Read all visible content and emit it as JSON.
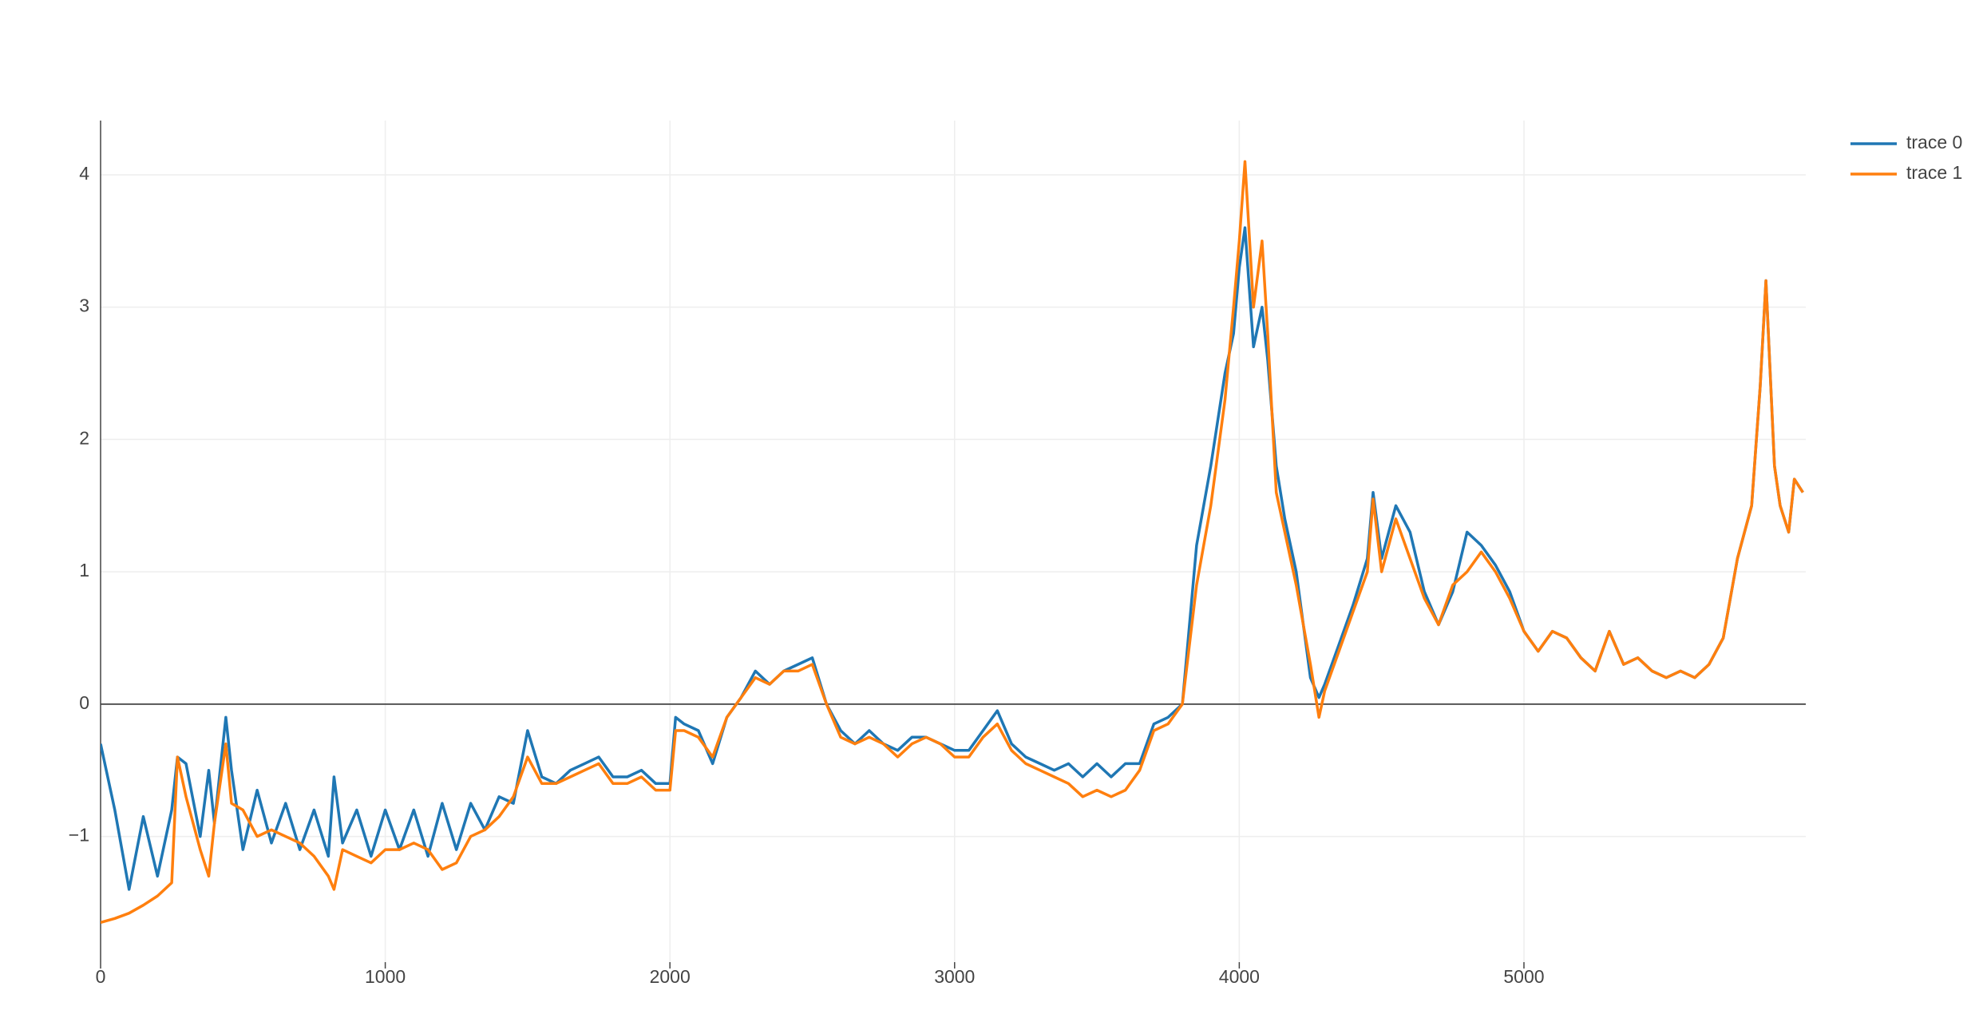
{
  "chart_data": {
    "type": "line",
    "x": [
      0,
      50,
      100,
      150,
      200,
      250,
      270,
      300,
      350,
      380,
      400,
      440,
      460,
      500,
      550,
      600,
      650,
      700,
      750,
      800,
      820,
      850,
      900,
      950,
      1000,
      1050,
      1100,
      1150,
      1200,
      1250,
      1300,
      1350,
      1400,
      1450,
      1500,
      1550,
      1600,
      1650,
      1700,
      1750,
      1800,
      1850,
      1900,
      1950,
      2000,
      2020,
      2050,
      2100,
      2150,
      2200,
      2250,
      2300,
      2350,
      2400,
      2450,
      2500,
      2550,
      2600,
      2650,
      2700,
      2750,
      2800,
      2850,
      2900,
      2950,
      3000,
      3050,
      3100,
      3150,
      3200,
      3250,
      3300,
      3350,
      3400,
      3450,
      3500,
      3550,
      3600,
      3650,
      3700,
      3750,
      3800,
      3850,
      3900,
      3950,
      3980,
      4000,
      4020,
      4050,
      4080,
      4100,
      4130,
      4160,
      4200,
      4250,
      4280,
      4300,
      4350,
      4400,
      4450,
      4470,
      4500,
      4550,
      4600,
      4650,
      4700,
      4750,
      4800,
      4850,
      4900,
      4950,
      5000,
      5050,
      5100,
      5150,
      5200,
      5250,
      5300,
      5350,
      5400,
      5450,
      5500,
      5550,
      5600,
      5650,
      5700,
      5750,
      5800,
      5830,
      5850,
      5880,
      5900,
      5930,
      5950,
      5980
    ],
    "series": [
      {
        "name": "trace 0",
        "color": "#1f77b4",
        "values": [
          -0.3,
          -0.8,
          -1.4,
          -0.85,
          -1.3,
          -0.8,
          -0.4,
          -0.45,
          -1.0,
          -0.5,
          -0.9,
          -0.1,
          -0.5,
          -1.1,
          -0.65,
          -1.05,
          -0.75,
          -1.1,
          -0.8,
          -1.15,
          -0.55,
          -1.05,
          -0.8,
          -1.15,
          -0.8,
          -1.1,
          -0.8,
          -1.15,
          -0.75,
          -1.1,
          -0.75,
          -0.95,
          -0.7,
          -0.75,
          -0.2,
          -0.55,
          -0.6,
          -0.5,
          -0.45,
          -0.4,
          -0.55,
          -0.55,
          -0.5,
          -0.6,
          -0.6,
          -0.1,
          -0.15,
          -0.2,
          -0.45,
          -0.1,
          0.05,
          0.25,
          0.15,
          0.25,
          0.3,
          0.35,
          0.0,
          -0.2,
          -0.3,
          -0.2,
          -0.3,
          -0.35,
          -0.25,
          -0.25,
          -0.3,
          -0.35,
          -0.35,
          -0.2,
          -0.05,
          -0.3,
          -0.4,
          -0.45,
          -0.5,
          -0.45,
          -0.55,
          -0.45,
          -0.55,
          -0.45,
          -0.45,
          -0.15,
          -0.1,
          0.0,
          1.2,
          1.8,
          2.5,
          2.8,
          3.3,
          3.6,
          2.7,
          3.0,
          2.6,
          1.8,
          1.4,
          1.0,
          0.2,
          0.05,
          0.15,
          0.45,
          0.75,
          1.1,
          1.6,
          1.1,
          1.5,
          1.3,
          0.85,
          0.6,
          0.85,
          1.3,
          1.2,
          1.05,
          0.85,
          0.55,
          0.4,
          0.55,
          0.5,
          0.35,
          0.25,
          0.55,
          0.3,
          0.35,
          0.25,
          0.2,
          0.25,
          0.2,
          0.3,
          0.5,
          1.1,
          1.5,
          2.4,
          3.2,
          1.8,
          1.5,
          1.3,
          1.7,
          1.6
        ]
      },
      {
        "name": "trace 1",
        "color": "#ff7f0e",
        "values": [
          -1.65,
          -1.62,
          -1.58,
          -1.52,
          -1.45,
          -1.35,
          -0.4,
          -0.7,
          -1.1,
          -1.3,
          -0.9,
          -0.3,
          -0.75,
          -0.8,
          -1.0,
          -0.95,
          -1.0,
          -1.05,
          -1.15,
          -1.3,
          -1.4,
          -1.1,
          -1.15,
          -1.2,
          -1.1,
          -1.1,
          -1.05,
          -1.1,
          -1.25,
          -1.2,
          -1.0,
          -0.95,
          -0.85,
          -0.7,
          -0.4,
          -0.6,
          -0.6,
          -0.55,
          -0.5,
          -0.45,
          -0.6,
          -0.6,
          -0.55,
          -0.65,
          -0.65,
          -0.2,
          -0.2,
          -0.25,
          -0.4,
          -0.1,
          0.05,
          0.2,
          0.15,
          0.25,
          0.25,
          0.3,
          0.0,
          -0.25,
          -0.3,
          -0.25,
          -0.3,
          -0.4,
          -0.3,
          -0.25,
          -0.3,
          -0.4,
          -0.4,
          -0.25,
          -0.15,
          -0.35,
          -0.45,
          -0.5,
          -0.55,
          -0.6,
          -0.7,
          -0.65,
          -0.7,
          -0.65,
          -0.5,
          -0.2,
          -0.15,
          0.0,
          0.9,
          1.5,
          2.3,
          3.0,
          3.5,
          4.1,
          3.0,
          3.5,
          2.8,
          1.6,
          1.3,
          0.9,
          0.3,
          -0.1,
          0.1,
          0.4,
          0.7,
          1.0,
          1.55,
          1.0,
          1.4,
          1.1,
          0.8,
          0.6,
          0.9,
          1.0,
          1.15,
          1.0,
          0.8,
          0.55,
          0.4,
          0.55,
          0.5,
          0.35,
          0.25,
          0.55,
          0.3,
          0.35,
          0.25,
          0.2,
          0.25,
          0.2,
          0.3,
          0.5,
          1.1,
          1.5,
          2.4,
          3.2,
          1.8,
          1.5,
          1.3,
          1.7,
          1.6
        ]
      }
    ],
    "xlim": [
      0,
      5990
    ],
    "ylim": [
      -1.95,
      4.41
    ],
    "xticks": [
      0,
      1000,
      2000,
      3000,
      4000,
      5000
    ],
    "yticks": [
      {
        "value": -1,
        "label": "−1"
      },
      0,
      1,
      2,
      3,
      4
    ],
    "grid": true
  }
}
